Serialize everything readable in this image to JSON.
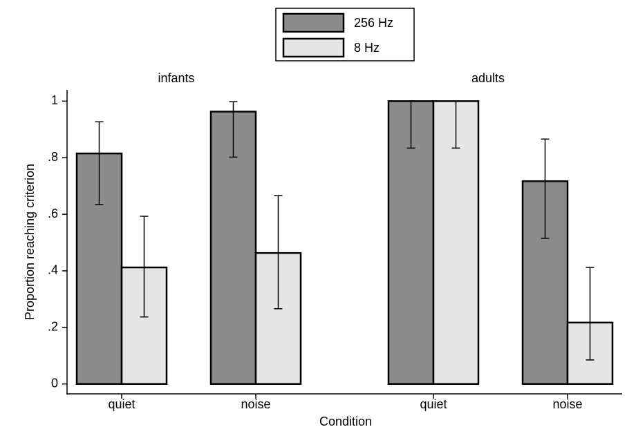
{
  "chart_data": {
    "type": "bar",
    "xlabel": "Condition",
    "ylabel": "Proportion reaching criterion",
    "ylim": [
      -0.035,
      1.04
    ],
    "yticks": [
      0,
      {
        "value": 0.2,
        "label": ".2"
      },
      {
        "value": 0.4,
        "label": ".4"
      },
      {
        "value": 0.6,
        "label": ".6"
      },
      {
        "value": 0.8,
        "label": ".8"
      },
      1
    ],
    "legend": "top",
    "panels": [
      {
        "title": "infants",
        "categories": [
          "quiet",
          "noise"
        ]
      },
      {
        "title": "adults",
        "categories": [
          "quiet",
          "noise"
        ]
      }
    ],
    "series": [
      {
        "name": "256 Hz",
        "color": "#8c8c8c",
        "values": [
          [
            0.815,
            0.963
          ],
          [
            1.0,
            0.717
          ]
        ],
        "ci_low": [
          [
            0.634,
            0.802
          ],
          [
            0.834,
            0.515
          ]
        ],
        "ci_high": [
          [
            0.927,
            0.998
          ],
          [
            1.0,
            0.866
          ]
        ]
      },
      {
        "name": "8 Hz",
        "color": "#e6e6e6",
        "values": [
          [
            0.412,
            0.463
          ],
          [
            1.0,
            0.217
          ]
        ],
        "ci_low": [
          [
            0.237,
            0.266
          ],
          [
            0.834,
            0.085
          ]
        ],
        "ci_high": [
          [
            0.593,
            0.666
          ],
          [
            1.0,
            0.412
          ]
        ]
      }
    ]
  }
}
